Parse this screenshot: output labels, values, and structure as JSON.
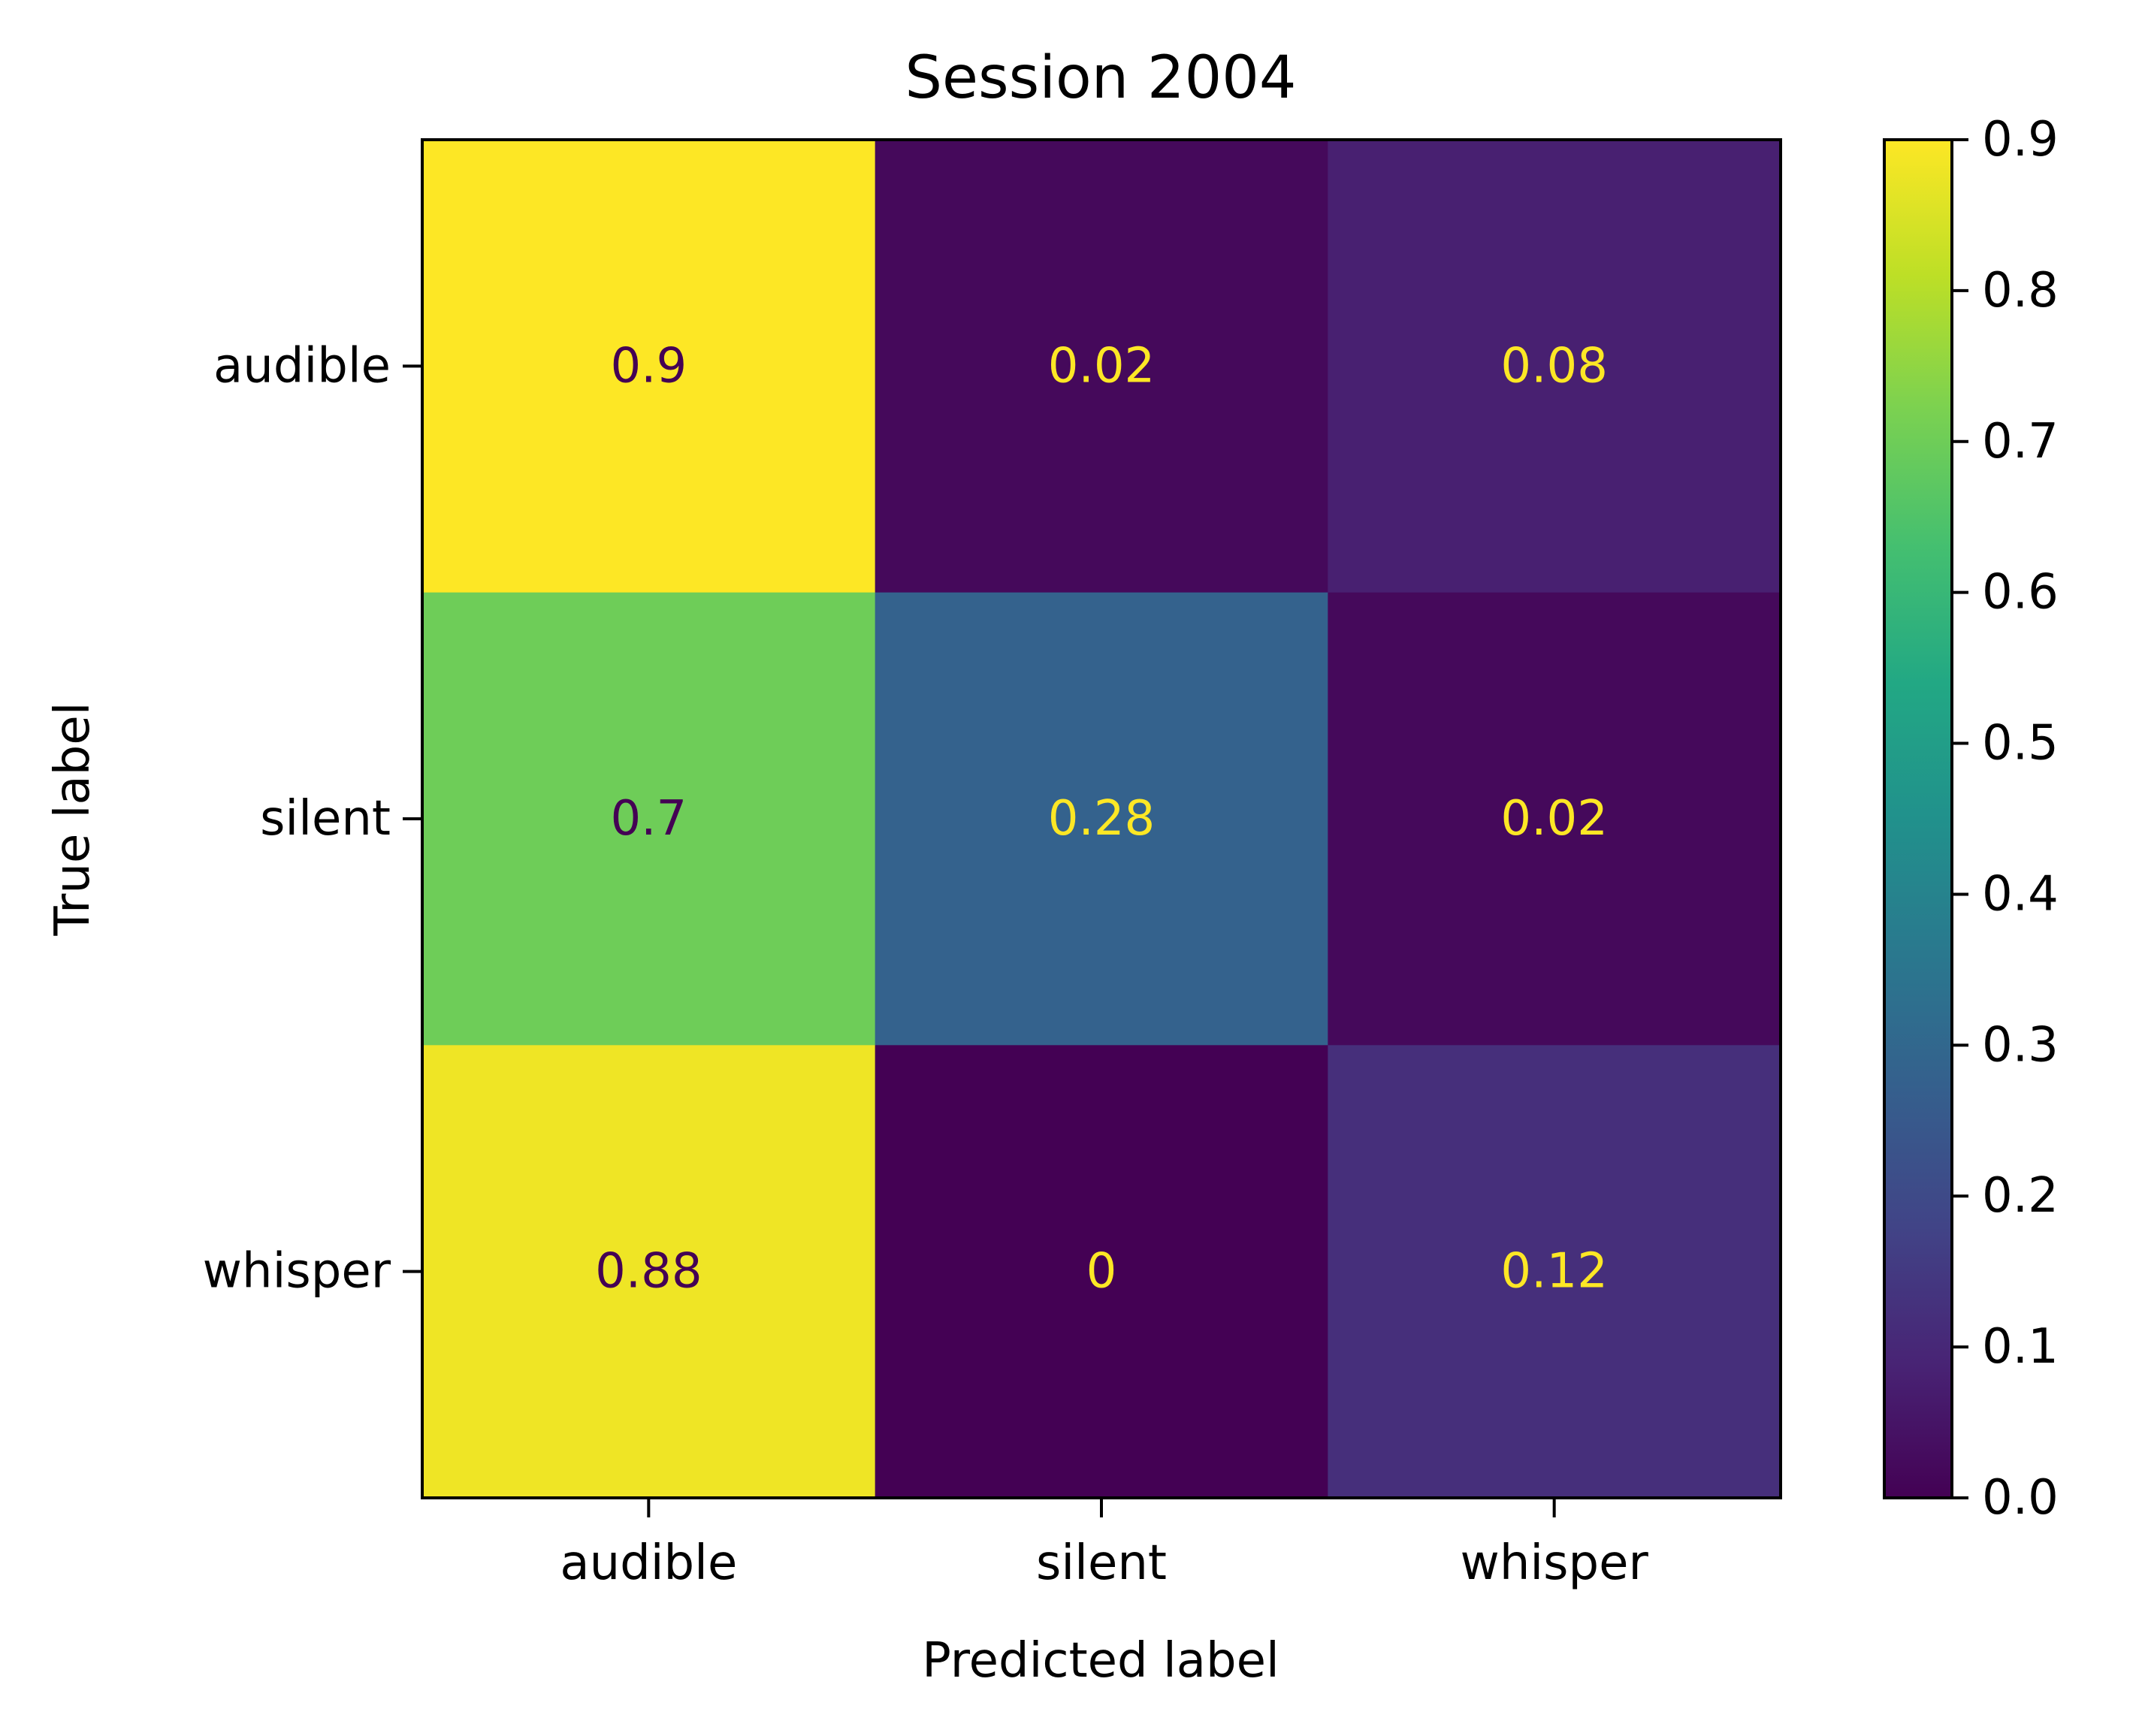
{
  "chart_data": {
    "type": "heatmap",
    "title": "Session 2004",
    "xlabel": "Predicted label",
    "ylabel": "True label",
    "x_categories": [
      "audible",
      "silent",
      "whisper"
    ],
    "y_categories": [
      "audible",
      "silent",
      "whisper"
    ],
    "values": [
      [
        0.9,
        0.02,
        0.08
      ],
      [
        0.7,
        0.28,
        0.02
      ],
      [
        0.88,
        0,
        0.12
      ]
    ],
    "value_labels": [
      [
        "0.9",
        "0.02",
        "0.08"
      ],
      [
        "0.7",
        "0.28",
        "0.02"
      ],
      [
        "0.88",
        "0",
        "0.12"
      ]
    ],
    "colorscale": "viridis",
    "colorbar": {
      "range": [
        0.0,
        0.9
      ],
      "ticks": [
        "0.0",
        "0.1",
        "0.2",
        "0.3",
        "0.4",
        "0.5",
        "0.6",
        "0.7",
        "0.8",
        "0.9"
      ]
    },
    "text_colors": {
      "light": "#fde725",
      "dark": "#440154"
    }
  }
}
